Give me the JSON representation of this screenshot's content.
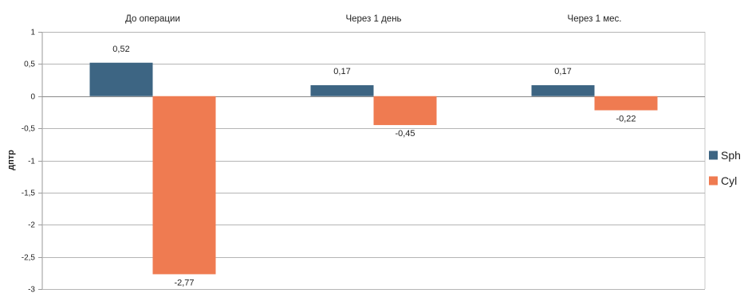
{
  "chart_data": {
    "type": "bar",
    "categories": [
      "До операции",
      "Через 1 день",
      "Через 1 мес."
    ],
    "series": [
      {
        "name": "Sph",
        "values": [
          0.52,
          0.17,
          0.17
        ],
        "labels": [
          "0,52",
          "0,17",
          "0,17"
        ],
        "color": "#3d6583"
      },
      {
        "name": "Cyl",
        "values": [
          -2.77,
          -0.45,
          -0.22
        ],
        "labels": [
          "-2,77",
          "-0,45",
          "-0,22"
        ],
        "color": "#ef7b51"
      }
    ],
    "ylabel": "дптр",
    "ylim": [
      -3,
      1
    ],
    "yticks": [
      1,
      0.5,
      0,
      -0.5,
      -1,
      -1.5,
      -2,
      -2.5,
      -3
    ],
    "ytick_labels": [
      "1",
      "0,5",
      "0",
      "-0,5",
      "-1",
      "-1,5",
      "-2",
      "-2,5",
      "-3"
    ],
    "xaxis_position": "top",
    "grid": true,
    "legend_position": "right"
  }
}
